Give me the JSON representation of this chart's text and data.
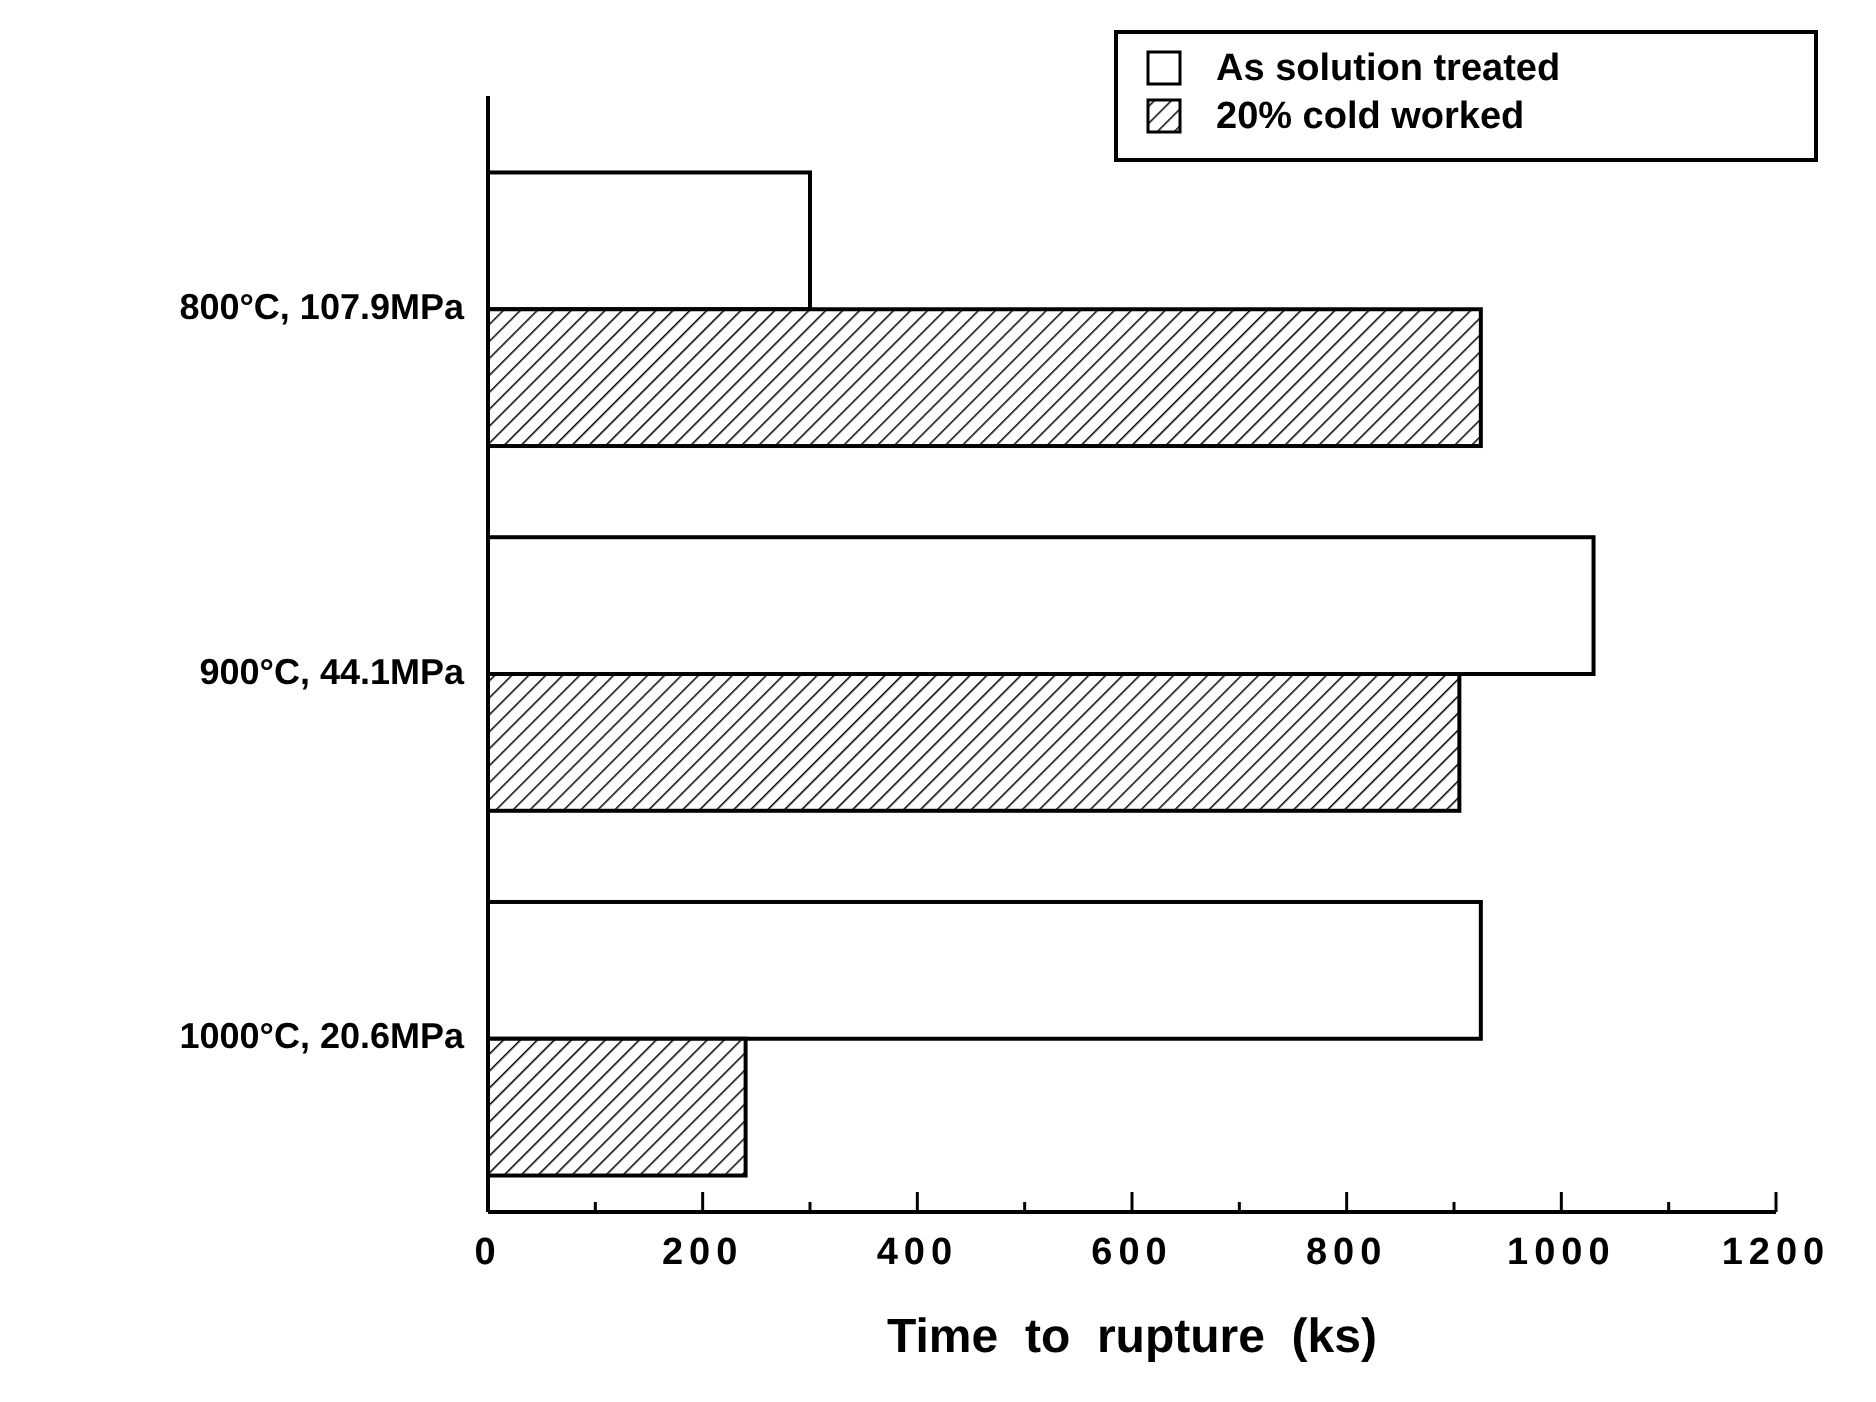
{
  "chart_data": {
    "type": "bar",
    "orientation": "horizontal",
    "xlabel": "Time  to  rupture  (ks)",
    "categories": [
      "800°C, 107.9MPa",
      "900°C, 44.1MPa",
      "1000°C, 20.6MPa"
    ],
    "series": [
      {
        "name": "As solution treated",
        "color": "#ffffff",
        "values": [
          300,
          1030,
          925
        ]
      },
      {
        "name": "20% cold worked",
        "color": "#000000",
        "values": [
          925,
          905,
          240
        ]
      }
    ],
    "xlim": [
      0,
      1200
    ],
    "xticks": [
      0,
      {
        "value": 100,
        "label": null
      },
      200,
      {
        "value": 300,
        "label": null
      },
      400,
      {
        "value": 500,
        "label": null
      },
      600,
      {
        "value": 700,
        "label": null
      },
      800,
      {
        "value": 900,
        "label": null
      },
      1000,
      {
        "value": 1100,
        "label": null
      },
      1200
    ],
    "legend": "top right",
    "grid": false
  }
}
